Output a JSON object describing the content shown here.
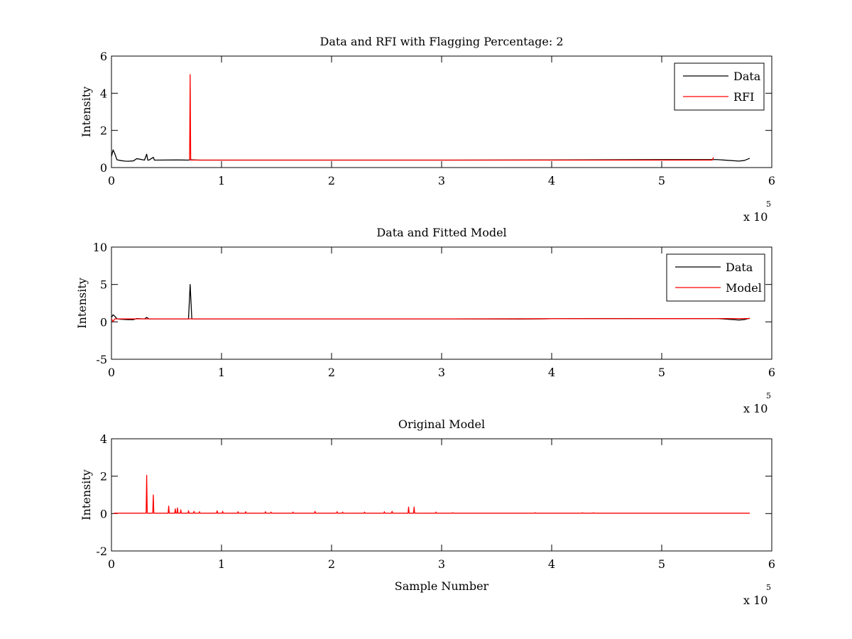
{
  "figure": {
    "background": "#ffffff"
  },
  "colors": {
    "data": "#000000",
    "rfi": "#ff0000",
    "model": "#ff0000"
  },
  "chart_data": [
    {
      "type": "line",
      "title": "Data and RFI with Flagging Percentage: 2",
      "xlabel": "",
      "ylabel": "Intensity",
      "xlim": [
        0,
        600000
      ],
      "ylim": [
        0,
        6
      ],
      "xticks": [
        0,
        1,
        2,
        3,
        4,
        5,
        6
      ],
      "yticks": [
        0,
        2,
        4,
        6
      ],
      "x_multiplier": {
        "base": "x 10",
        "exponent": "5"
      },
      "grid": false,
      "legend": {
        "placement": "top-right",
        "entries": [
          "Data",
          "RFI"
        ]
      },
      "series": [
        {
          "name": "Data",
          "color": "#000000",
          "x": [
            0,
            1500,
            3000,
            5000,
            8000,
            12000,
            15000,
            20000,
            23000,
            30000,
            32000,
            33000,
            34000,
            38000,
            39000,
            40000,
            60000,
            70000,
            72000,
            80000,
            100000,
            150000,
            200000,
            300000,
            400000,
            450000,
            500000,
            550000,
            570000,
            575000,
            580000
          ],
          "y": [
            0.6,
            0.95,
            0.75,
            0.42,
            0.38,
            0.35,
            0.34,
            0.36,
            0.48,
            0.4,
            0.72,
            0.4,
            0.4,
            0.55,
            0.4,
            0.4,
            0.41,
            0.4,
            0.42,
            0.4,
            0.4,
            0.4,
            0.4,
            0.4,
            0.41,
            0.42,
            0.43,
            0.43,
            0.35,
            0.38,
            0.5
          ]
        },
        {
          "name": "RFI",
          "color": "#ff0000",
          "x": [
            71000,
            71500,
            72000,
            546000,
            547000
          ],
          "y": [
            0.4,
            5.0,
            0.4,
            0.4,
            0.55
          ]
        }
      ]
    },
    {
      "type": "line",
      "title": "Data and Fitted Model",
      "xlabel": "",
      "ylabel": "Intensity",
      "xlim": [
        0,
        600000
      ],
      "ylim": [
        -5,
        10
      ],
      "xticks": [
        0,
        1,
        2,
        3,
        4,
        5,
        6
      ],
      "yticks": [
        -5,
        0,
        5,
        10
      ],
      "x_multiplier": {
        "base": "x 10",
        "exponent": "5"
      },
      "grid": false,
      "legend": {
        "placement": "top-right",
        "entries": [
          "Data",
          "Model"
        ]
      },
      "series": [
        {
          "name": "Data",
          "color": "#000000",
          "x": [
            0,
            1500,
            3000,
            5000,
            8000,
            12000,
            15000,
            20000,
            23000,
            30000,
            32000,
            34000,
            70000,
            71500,
            73000,
            100000,
            200000,
            300000,
            372000,
            400000,
            450000,
            500000,
            550000,
            570000,
            575000,
            580000
          ],
          "y": [
            0.6,
            0.95,
            0.75,
            0.42,
            0.35,
            0.32,
            0.3,
            0.3,
            0.45,
            0.4,
            0.6,
            0.4,
            0.4,
            5.0,
            0.4,
            0.4,
            0.4,
            0.4,
            0.38,
            0.42,
            0.44,
            0.44,
            0.45,
            0.25,
            0.3,
            0.5
          ]
        },
        {
          "name": "Model",
          "color": "#ff0000",
          "x": [
            0,
            1500,
            3000,
            5000,
            100000,
            200000,
            300000,
            400000,
            500000,
            580000
          ],
          "y": [
            0.4,
            0.05,
            0.4,
            0.4,
            0.4,
            0.4,
            0.4,
            0.42,
            0.44,
            0.45
          ]
        }
      ]
    },
    {
      "type": "line",
      "title": "Original Model",
      "xlabel": "Sample Number",
      "ylabel": "Intensity",
      "xlim": [
        0,
        600000
      ],
      "ylim": [
        -2,
        4
      ],
      "xticks": [
        0,
        1,
        2,
        3,
        4,
        5,
        6
      ],
      "yticks": [
        -2,
        0,
        2,
        4
      ],
      "x_multiplier": {
        "base": "x 10",
        "exponent": "5"
      },
      "grid": false,
      "legend": null,
      "series": [
        {
          "color": "#ff0000",
          "baseline": 0.02,
          "x_start": 2000,
          "x_end": 580000,
          "spikes": [
            [
              32000,
              2.05
            ],
            [
              38000,
              1.0
            ],
            [
              52000,
              0.4
            ],
            [
              58000,
              0.25
            ],
            [
              60000,
              0.3
            ],
            [
              63000,
              0.2
            ],
            [
              70000,
              0.15
            ],
            [
              75000,
              0.12
            ],
            [
              80000,
              0.1
            ],
            [
              96000,
              0.15
            ],
            [
              101000,
              0.12
            ],
            [
              115000,
              0.1
            ],
            [
              122000,
              0.1
            ],
            [
              140000,
              0.1
            ],
            [
              145000,
              0.08
            ],
            [
              165000,
              0.08
            ],
            [
              185000,
              0.12
            ],
            [
              205000,
              0.1
            ],
            [
              210000,
              0.08
            ],
            [
              230000,
              0.08
            ],
            [
              248000,
              0.1
            ],
            [
              255000,
              0.12
            ],
            [
              270000,
              0.35
            ],
            [
              275000,
              0.35
            ],
            [
              295000,
              0.08
            ],
            [
              310000,
              0.05
            ],
            [
              385000,
              0.05
            ],
            [
              428000,
              0.05
            ],
            [
              438000,
              0.05
            ]
          ]
        }
      ]
    }
  ]
}
